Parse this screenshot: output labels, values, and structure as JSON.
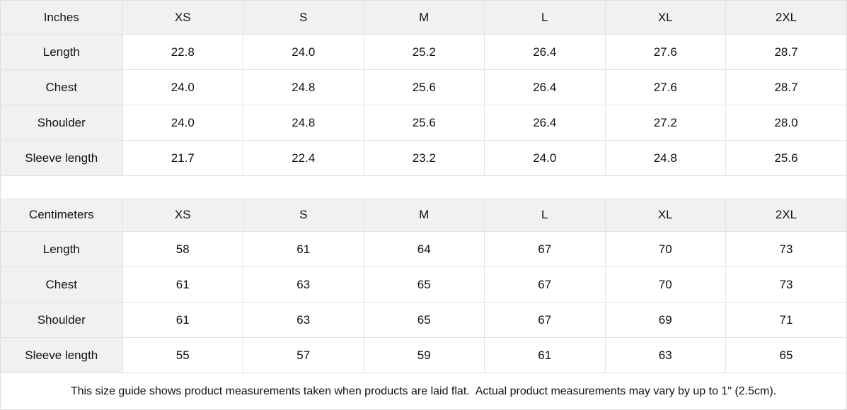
{
  "colors": {
    "header_bg": "#f1f1f1",
    "border": "#e3e3e3",
    "text": "#111111"
  },
  "tables": [
    {
      "unit_label": "Inches",
      "sizes": [
        "XS",
        "S",
        "M",
        "L",
        "XL",
        "2XL"
      ],
      "rows": [
        {
          "label": "Length",
          "values": [
            "22.8",
            "24.0",
            "25.2",
            "26.4",
            "27.6",
            "28.7"
          ]
        },
        {
          "label": "Chest",
          "values": [
            "24.0",
            "24.8",
            "25.6",
            "26.4",
            "27.6",
            "28.7"
          ]
        },
        {
          "label": "Shoulder",
          "values": [
            "24.0",
            "24.8",
            "25.6",
            "26.4",
            "27.2",
            "28.0"
          ]
        },
        {
          "label": "Sleeve length",
          "values": [
            "21.7",
            "22.4",
            "23.2",
            "24.0",
            "24.8",
            "25.6"
          ]
        }
      ]
    },
    {
      "unit_label": "Centimeters",
      "sizes": [
        "XS",
        "S",
        "M",
        "L",
        "XL",
        "2XL"
      ],
      "rows": [
        {
          "label": "Length",
          "values": [
            "58",
            "61",
            "64",
            "67",
            "70",
            "73"
          ]
        },
        {
          "label": "Chest",
          "values": [
            "61",
            "63",
            "65",
            "67",
            "70",
            "73"
          ]
        },
        {
          "label": "Shoulder",
          "values": [
            "61",
            "63",
            "65",
            "67",
            "69",
            "71"
          ]
        },
        {
          "label": "Sleeve length",
          "values": [
            "55",
            "57",
            "59",
            "61",
            "63",
            "65"
          ]
        }
      ]
    }
  ],
  "footer": {
    "note": "This size guide shows product measurements taken when products are laid flat.  Actual product measurements may vary by up to 1\" (2.5cm)."
  }
}
